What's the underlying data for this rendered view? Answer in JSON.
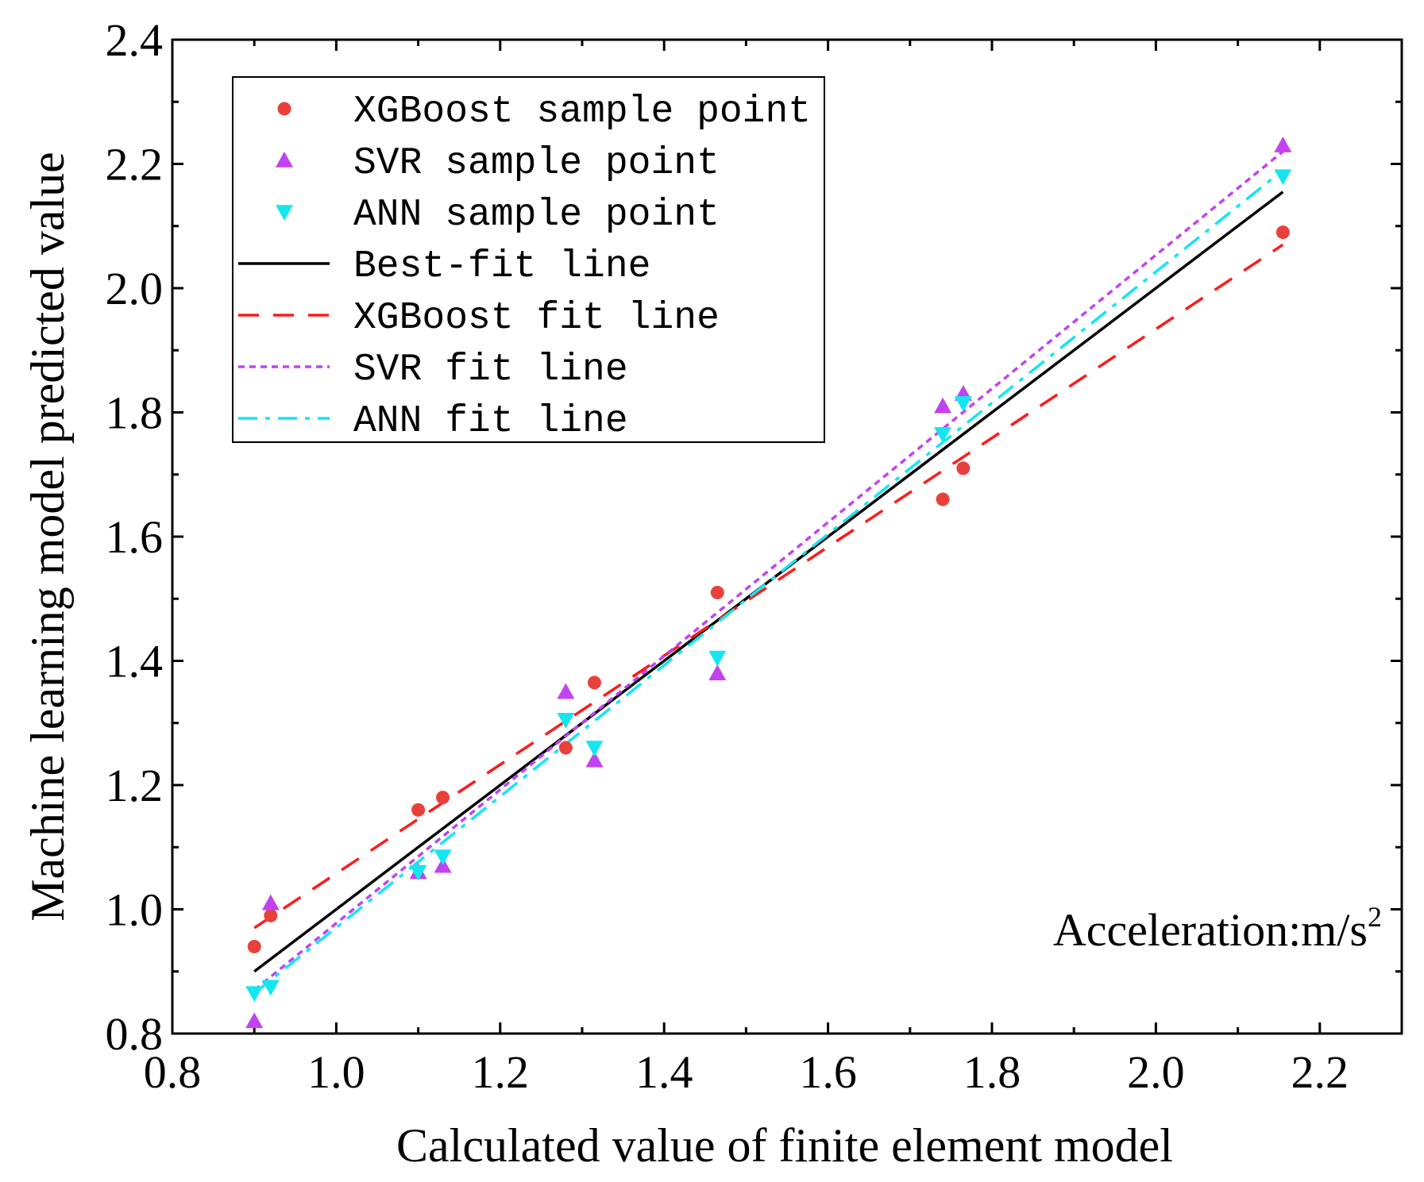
{
  "chart_data": {
    "type": "scatter",
    "title": "",
    "xlabel": "Calculated value of finite element model",
    "ylabel": "Machine learning model predicted value",
    "xlim": [
      0.8,
      2.3
    ],
    "ylim": [
      0.8,
      2.4
    ],
    "xticks": [
      0.8,
      1.0,
      1.2,
      1.4,
      1.6,
      1.8,
      2.0,
      2.2
    ],
    "yticks": [
      0.8,
      1.0,
      1.2,
      1.4,
      1.6,
      1.8,
      2.0,
      2.2,
      2.4
    ],
    "xtick_labels": [
      "0.8",
      "1.0",
      "1.2",
      "1.4",
      "1.6",
      "1.8",
      "2.0",
      "2.2"
    ],
    "ytick_labels": [
      "0.8",
      "1.0",
      "1.2",
      "1.4",
      "1.6",
      "1.8",
      "2.0",
      "2.2",
      "2.4"
    ],
    "annotation": {
      "text": "Acceleration:m/s",
      "superscript": "2"
    },
    "legend_position": "top-left",
    "series": [
      {
        "name": "XGBoost sample point",
        "kind": "scatter",
        "marker": "circle",
        "color": "#e8413c",
        "x": [
          0.9,
          0.92,
          1.1,
          1.13,
          1.28,
          1.315,
          1.465,
          1.74,
          1.765,
          2.155
        ],
        "y": [
          0.94,
          0.99,
          1.16,
          1.18,
          1.26,
          1.365,
          1.51,
          1.66,
          1.71,
          2.09
        ]
      },
      {
        "name": "SVR sample point",
        "kind": "scatter",
        "marker": "triangle-up",
        "color": "#c242f2",
        "x": [
          0.9,
          0.92,
          1.1,
          1.13,
          1.28,
          1.315,
          1.465,
          1.74,
          1.765,
          2.155
        ],
        "y": [
          0.82,
          1.01,
          1.06,
          1.07,
          1.35,
          1.24,
          1.38,
          1.81,
          1.83,
          2.23
        ]
      },
      {
        "name": "ANN sample point",
        "kind": "scatter",
        "marker": "triangle-down",
        "color": "#14e6f0",
        "x": [
          0.9,
          0.92,
          1.1,
          1.13,
          1.28,
          1.315,
          1.465,
          1.74,
          1.765,
          2.155
        ],
        "y": [
          0.865,
          0.875,
          1.06,
          1.085,
          1.305,
          1.26,
          1.405,
          1.765,
          1.815,
          2.18
        ]
      },
      {
        "name": "Best-fit line",
        "kind": "line",
        "dash": "solid",
        "color": "#000000",
        "x": [
          0.9,
          2.155
        ],
        "y": [
          0.9,
          2.155
        ]
      },
      {
        "name": "XGBoost fit line",
        "kind": "line",
        "dash": "dashed",
        "color": "#ff1a1a",
        "x": [
          0.9,
          2.155
        ],
        "y": [
          0.97,
          2.07
        ]
      },
      {
        "name": "SVR fit line",
        "kind": "line",
        "dash": "dotted",
        "color": "#c242f2",
        "x": [
          0.9,
          2.155
        ],
        "y": [
          0.87,
          2.22
        ]
      },
      {
        "name": "ANN fit line",
        "kind": "line",
        "dash": "dashdot",
        "color": "#14e6f0",
        "x": [
          0.9,
          2.155
        ],
        "y": [
          0.865,
          2.19
        ]
      }
    ]
  }
}
